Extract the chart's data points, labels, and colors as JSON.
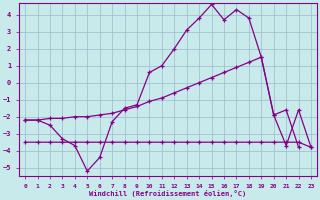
{
  "xlabel": "Windchill (Refroidissement éolien,°C)",
  "bg_color": "#c8eaea",
  "line_color": "#880088",
  "grid_color": "#99bbcc",
  "xmin": -0.5,
  "xmax": 23.5,
  "ymin": -5.5,
  "ymax": 4.7,
  "yticks": [
    -5,
    -4,
    -3,
    -2,
    -1,
    0,
    1,
    2,
    3,
    4
  ],
  "xticks": [
    0,
    1,
    2,
    3,
    4,
    5,
    6,
    7,
    8,
    9,
    10,
    11,
    12,
    13,
    14,
    15,
    16,
    17,
    18,
    19,
    20,
    21,
    22,
    23
  ],
  "line1_x": [
    0,
    1,
    2,
    3,
    4,
    5,
    6,
    7,
    8,
    9,
    10,
    11,
    12,
    13,
    14,
    15,
    16,
    17,
    18,
    19,
    20,
    21,
    22,
    23
  ],
  "line1_y": [
    -2.2,
    -2.2,
    -2.5,
    -3.3,
    -3.7,
    -5.2,
    -4.4,
    -2.3,
    -1.5,
    -1.3,
    0.6,
    1.0,
    2.0,
    3.1,
    3.8,
    4.6,
    3.7,
    4.3,
    3.8,
    1.5,
    -1.9,
    -3.7,
    -1.6,
    -3.8
  ],
  "line2_x": [
    0,
    1,
    2,
    3,
    4,
    5,
    6,
    7,
    8,
    9,
    10,
    11,
    12,
    13,
    14,
    15,
    16,
    17,
    18,
    19,
    20,
    21,
    22,
    23
  ],
  "line2_y": [
    -2.2,
    -2.2,
    -2.1,
    -2.1,
    -2.0,
    -2.0,
    -1.9,
    -1.8,
    -1.6,
    -1.4,
    -1.1,
    -0.9,
    -0.6,
    -0.3,
    -0.0,
    0.3,
    0.6,
    0.9,
    1.2,
    1.5,
    -1.9,
    -1.6,
    -3.8,
    null
  ],
  "line3_x": [
    0,
    1,
    2,
    3,
    4,
    5,
    6,
    7,
    8,
    9,
    10,
    11,
    12,
    13,
    14,
    15,
    16,
    17,
    18,
    19,
    20,
    21,
    22,
    23
  ],
  "line3_y": [
    -3.5,
    -3.5,
    -3.5,
    -3.5,
    -3.5,
    -3.5,
    -3.5,
    -3.5,
    -3.5,
    -3.5,
    -3.5,
    -3.5,
    -3.5,
    -3.5,
    -3.5,
    -3.5,
    -3.5,
    -3.5,
    -3.5,
    -3.5,
    -3.5,
    -3.5,
    -3.5,
    -3.8
  ]
}
